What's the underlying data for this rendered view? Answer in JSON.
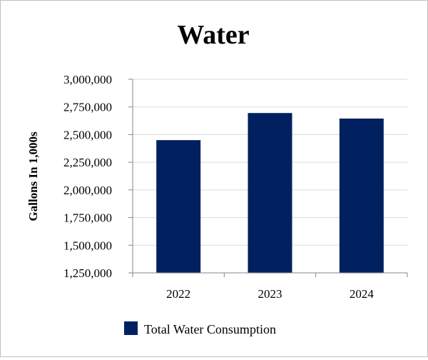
{
  "chart_data": {
    "type": "bar",
    "title": "Water",
    "xlabel": "",
    "ylabel": "Gallons In 1,000s",
    "categories": [
      "2022",
      "2023",
      "2024"
    ],
    "series": [
      {
        "name": "Total Water Consumption",
        "values": [
          2450000,
          2695000,
          2645000
        ],
        "color": "#002060"
      }
    ],
    "ylim": [
      1250000,
      3000000
    ],
    "yticks": [
      1250000,
      1500000,
      1750000,
      2000000,
      2250000,
      2500000,
      2750000,
      3000000
    ],
    "ytick_labels": [
      "1,250,000",
      "1,500,000",
      "1,750,000",
      "2,000,000",
      "2,250,000",
      "2,500,000",
      "2,750,000",
      "3,000,000"
    ],
    "grid": true,
    "legend_position": "bottom"
  },
  "colors": {
    "bar": "#002060",
    "grid": "#d9d9d9",
    "axis": "#868686",
    "frame": "#bfbfbf"
  }
}
